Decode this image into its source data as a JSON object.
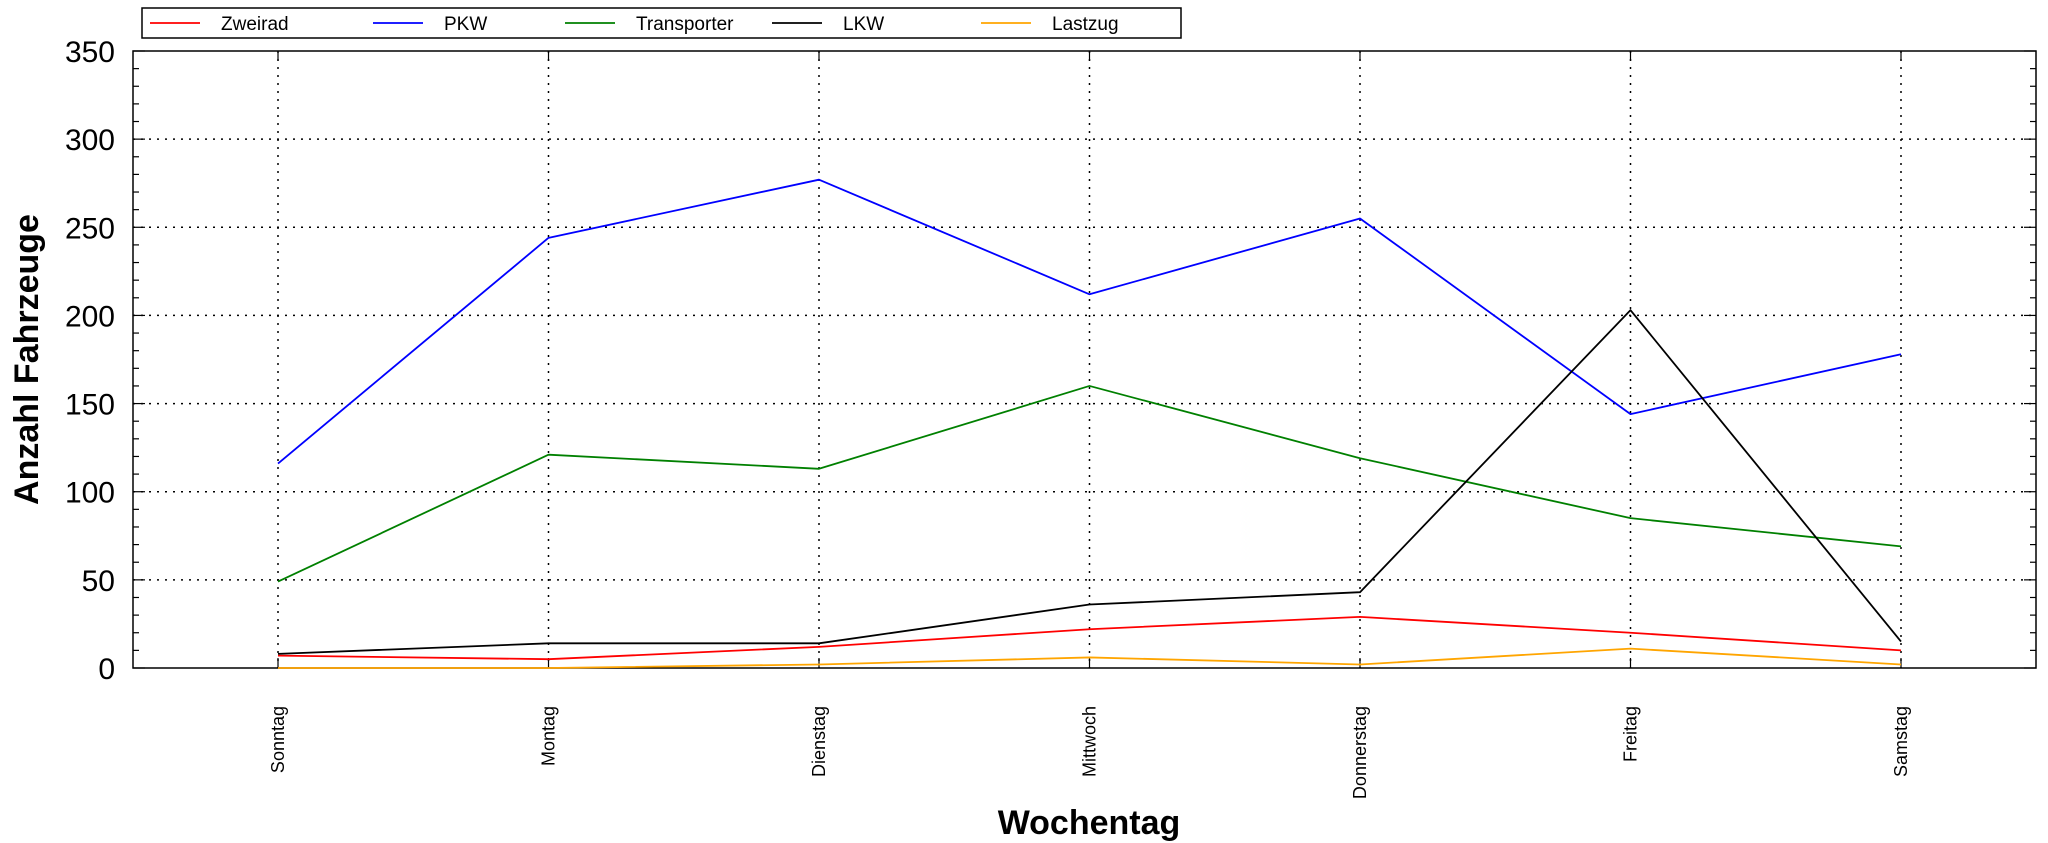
{
  "chart_data": {
    "type": "line",
    "xlabel": "Wochentag",
    "ylabel": "Anzahl Fahrzeuge",
    "categories": [
      "Sonntag",
      "Montag",
      "Dienstag",
      "Mittwoch",
      "Donnerstag",
      "Freitag",
      "Samstag"
    ],
    "ylim": [
      0,
      350
    ],
    "yticks": [
      0,
      50,
      100,
      150,
      200,
      250,
      300,
      350
    ],
    "grid": true,
    "legend_position": "top-left",
    "series": [
      {
        "name": "Zweirad",
        "color": "#ff0000",
        "values": [
          7,
          5,
          12,
          22,
          29,
          20,
          10
        ]
      },
      {
        "name": "PKW",
        "color": "#0000ff",
        "values": [
          116,
          244,
          277,
          212,
          255,
          144,
          178
        ]
      },
      {
        "name": "Transporter",
        "color": "#008000",
        "values": [
          49,
          121,
          113,
          160,
          119,
          85,
          69
        ]
      },
      {
        "name": "LKW",
        "color": "#000000",
        "values": [
          8,
          14,
          14,
          36,
          43,
          203,
          15
        ]
      },
      {
        "name": "Lastzug",
        "color": "#ffa500",
        "values": [
          0,
          0,
          2,
          6,
          2,
          11,
          2
        ]
      }
    ]
  }
}
